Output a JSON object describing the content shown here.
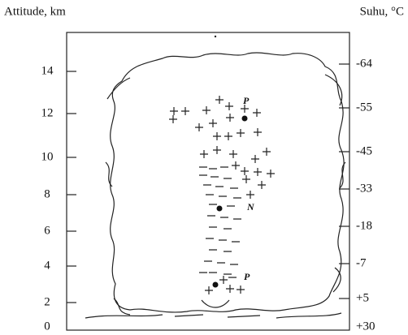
{
  "axis_titles": {
    "left": "Attitude, km",
    "right": "Suhu, °C"
  },
  "left_axis": {
    "labels": [
      "14",
      "12",
      "10",
      "8",
      "6",
      "4",
      "2",
      "0"
    ]
  },
  "right_axis": {
    "labels": [
      "-64",
      "-55",
      "-45",
      "-33",
      "-18",
      "-7",
      "+5",
      "+30"
    ]
  },
  "charges": [
    {
      "label": "P"
    },
    {
      "label": "N"
    },
    {
      "label": "P"
    }
  ]
}
